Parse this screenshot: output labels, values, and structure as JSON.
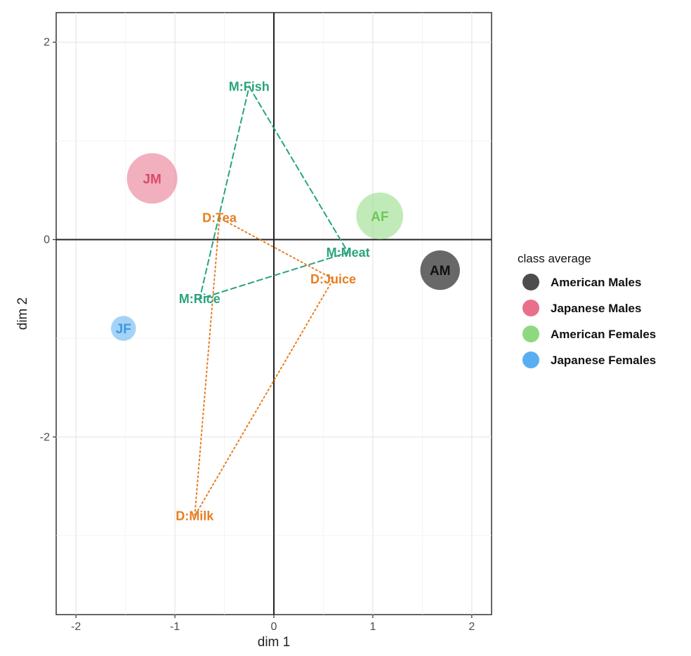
{
  "chart_data": {
    "type": "scatter",
    "xlabel": "dim 1",
    "ylabel": "dim 2",
    "xlim": [
      -2.2,
      2.2
    ],
    "ylim": [
      -3.8,
      2.3
    ],
    "xticks": [
      -2,
      -1,
      0,
      1,
      2
    ],
    "xtick_labels": [
      "-2",
      "-1",
      "0",
      "1",
      "2"
    ],
    "yticks": [
      -2,
      0,
      2
    ],
    "ytick_labels": [
      "-2",
      "0",
      "2"
    ],
    "grid": true,
    "reference_lines": {
      "x": 0,
      "y": 0
    },
    "legend": {
      "title": "class average",
      "placement": "right",
      "entries": [
        {
          "name": "American Males",
          "color": "#4d4d4d"
        },
        {
          "name": "Japanese Males",
          "color": "#e8708a"
        },
        {
          "name": "American Females",
          "color": "#8ed97f"
        },
        {
          "name": "Japanese Females",
          "color": "#5aaef0"
        }
      ]
    },
    "class_averages": [
      {
        "label": "JM",
        "x": -1.23,
        "y": 0.62,
        "size": 1.0,
        "color": "#e8708a",
        "text_color": "#d94a6b"
      },
      {
        "label": "AF",
        "x": 1.07,
        "y": 0.24,
        "size": 0.9,
        "color": "#8ed97f",
        "text_color": "#6cc75a"
      },
      {
        "label": "AM",
        "x": 1.68,
        "y": -0.31,
        "size": 0.7,
        "color": "#4d4d4d",
        "text_color": "#111111"
      },
      {
        "label": "JF",
        "x": -1.52,
        "y": -0.9,
        "size": 0.3,
        "color": "#5aaef0",
        "text_color": "#3b9ae0"
      }
    ],
    "series": [
      {
        "group": "M",
        "color": "#2aa37e",
        "line": "dashed",
        "points": [
          {
            "label": "M:Fish",
            "x": -0.25,
            "y": 1.55
          },
          {
            "label": "M:Meat",
            "x": 0.75,
            "y": -0.13
          },
          {
            "label": "M:Rice",
            "x": -0.75,
            "y": -0.6
          }
        ]
      },
      {
        "group": "D",
        "color": "#e67e22",
        "line": "dotted",
        "points": [
          {
            "label": "D:Tea",
            "x": -0.55,
            "y": 0.22
          },
          {
            "label": "D:Juice",
            "x": 0.6,
            "y": -0.4
          },
          {
            "label": "D:Milk",
            "x": -0.8,
            "y": -2.8
          }
        ]
      }
    ]
  }
}
